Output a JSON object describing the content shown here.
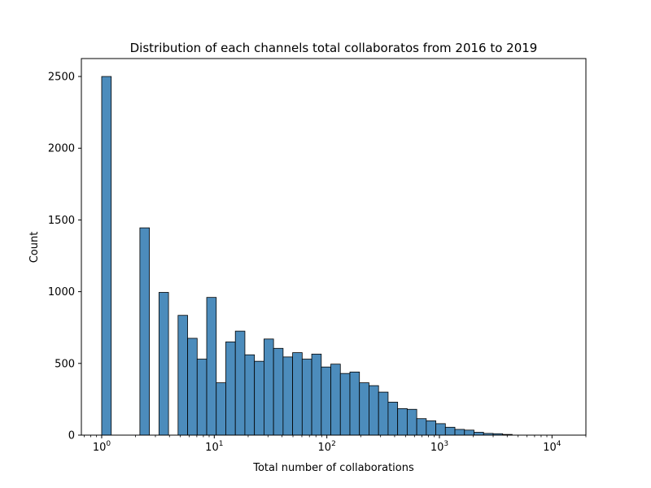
{
  "chart_data": {
    "type": "bar",
    "title": "Distribution of each channels total collaboratos from 2016 to 2019",
    "xlabel": "Total number of collaborations",
    "ylabel": "Count",
    "x_scale": "log",
    "xlim": [
      0.66,
      20000
    ],
    "ylim": [
      0,
      2625
    ],
    "bar_color": "#4c8cbc",
    "edge_color": "#000000",
    "grid": false,
    "x_ticks": [
      {
        "value": 1,
        "base": "10",
        "exp": "0"
      },
      {
        "value": 10,
        "base": "10",
        "exp": "1"
      },
      {
        "value": 100,
        "base": "10",
        "exp": "2"
      },
      {
        "value": 1000,
        "base": "10",
        "exp": "3"
      },
      {
        "value": 10000,
        "base": "10",
        "exp": "4"
      }
    ],
    "y_ticks": [
      {
        "value": 0,
        "label": "0"
      },
      {
        "value": 500,
        "label": "500"
      },
      {
        "value": 1000,
        "label": "1000"
      },
      {
        "value": 1500,
        "label": "1500"
      },
      {
        "value": 2000,
        "label": "2000"
      },
      {
        "value": 2500,
        "label": "2500"
      }
    ],
    "bins": {
      "log10_start": 0,
      "log10_width": 0.0848,
      "counts": [
        2500,
        0,
        0,
        0,
        1445,
        0,
        995,
        0,
        835,
        675,
        530,
        960,
        365,
        650,
        725,
        560,
        515,
        670,
        605,
        545,
        575,
        530,
        565,
        475,
        495,
        430,
        440,
        365,
        345,
        300,
        230,
        185,
        180,
        115,
        100,
        80,
        55,
        40,
        35,
        20,
        12,
        10,
        5,
        0,
        0,
        0,
        0,
        0,
        0,
        0
      ]
    }
  }
}
